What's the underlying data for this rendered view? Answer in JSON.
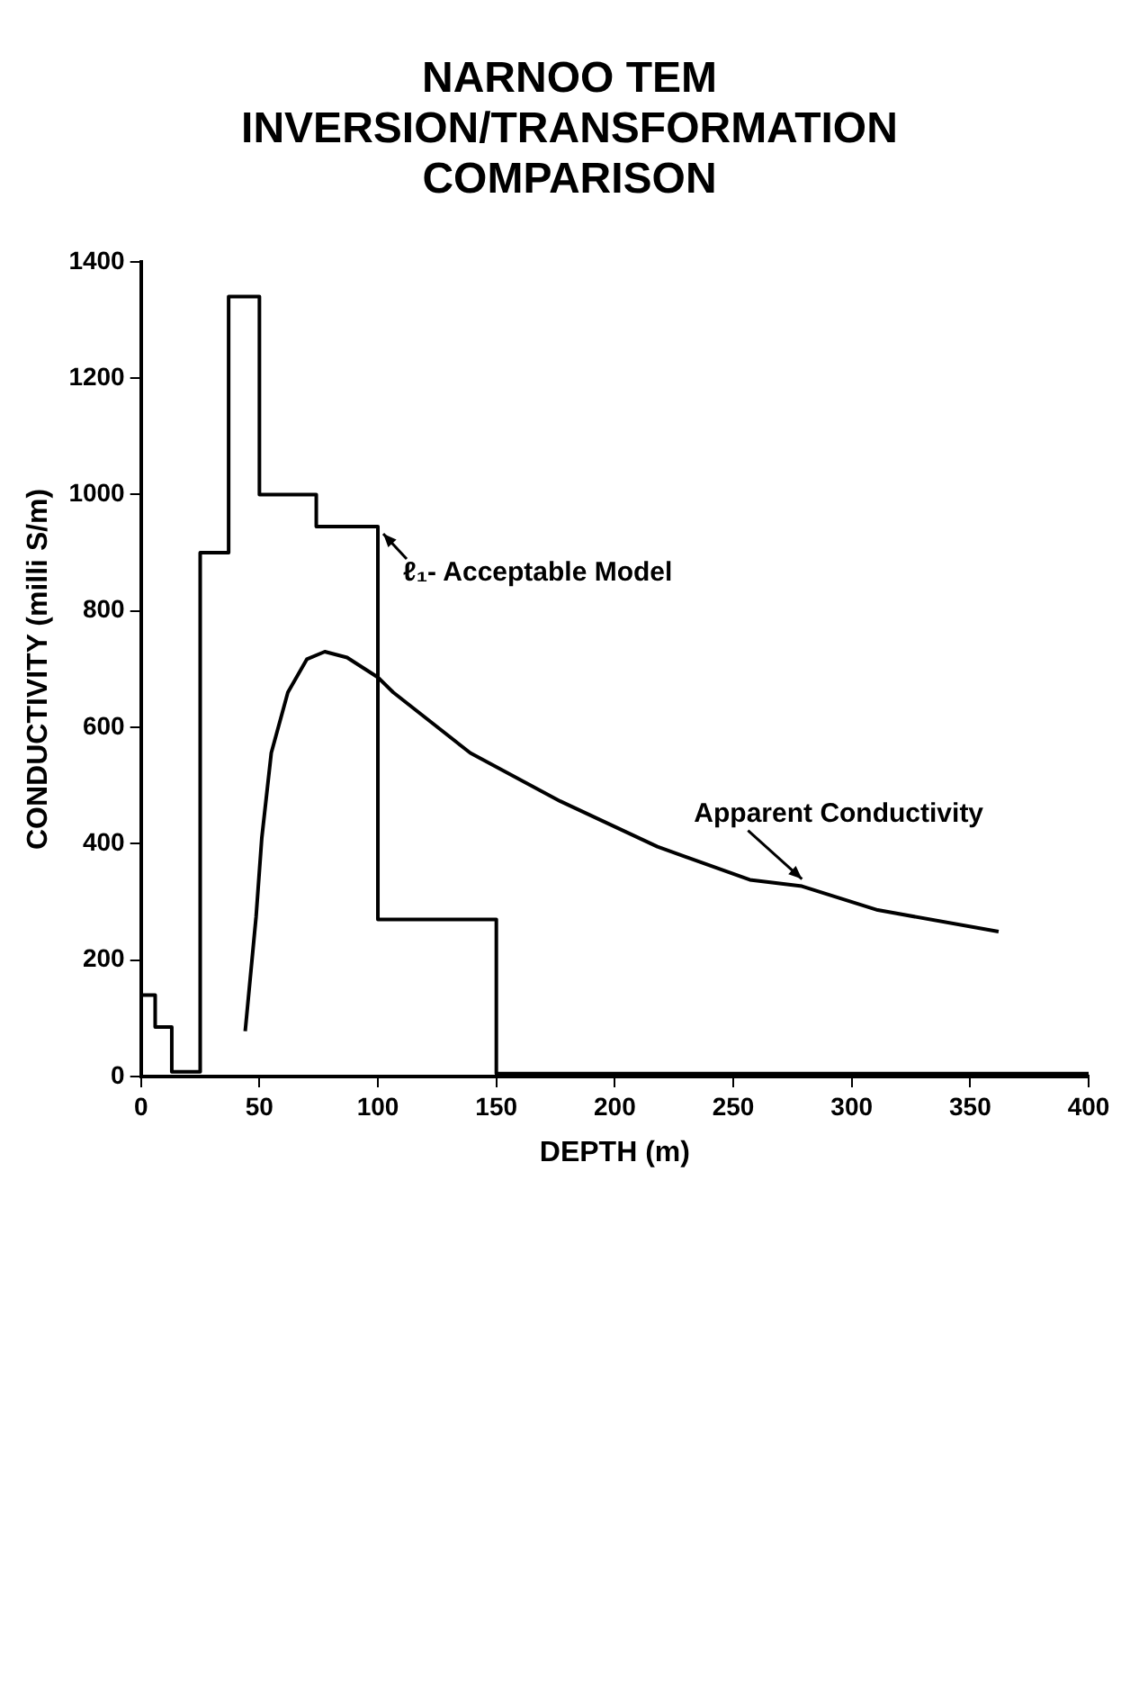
{
  "chart_data": {
    "type": "line",
    "title": "NARNOO TEM INVERSION/TRANSFORMATION COMPARISON",
    "xlabel": "DEPTH (m)",
    "ylabel": "CONDUCTIVITY (milli S/m)",
    "xlim": [
      0,
      400
    ],
    "xticks": [
      0,
      50,
      100,
      150,
      200,
      250,
      300,
      350,
      400
    ],
    "ylim": [
      0,
      1400
    ],
    "yticks": [
      0,
      200,
      400,
      600,
      800,
      1000,
      1200,
      1400
    ],
    "grid": false,
    "marker": "none",
    "line_style": "solid",
    "legend": false,
    "annotations": [
      "ℓ₁- Acceptable Model",
      {
        "text": "Apparent Conductivity",
        "x": 279,
        "y": 327
      }
    ],
    "series": [
      {
        "type": "step",
        "color": "#000000",
        "x": [
          0,
          6,
          13,
          25,
          37,
          50,
          74,
          100,
          150,
          400
        ],
        "values": [
          140,
          85,
          8,
          900,
          1340,
          1000,
          945,
          270,
          5,
          5
        ]
      },
      {
        "color": "#000000",
        "x": [
          44,
          48.6,
          51,
          55,
          62,
          70,
          77.6,
          87,
          100,
          106.5,
          139,
          177,
          218,
          257,
          279,
          311,
          362
        ],
        "values": [
          78,
          275,
          410,
          556,
          660,
          717,
          730,
          720,
          686,
          660,
          556,
          473,
          395,
          338,
          327,
          286,
          249
        ]
      }
    ]
  }
}
